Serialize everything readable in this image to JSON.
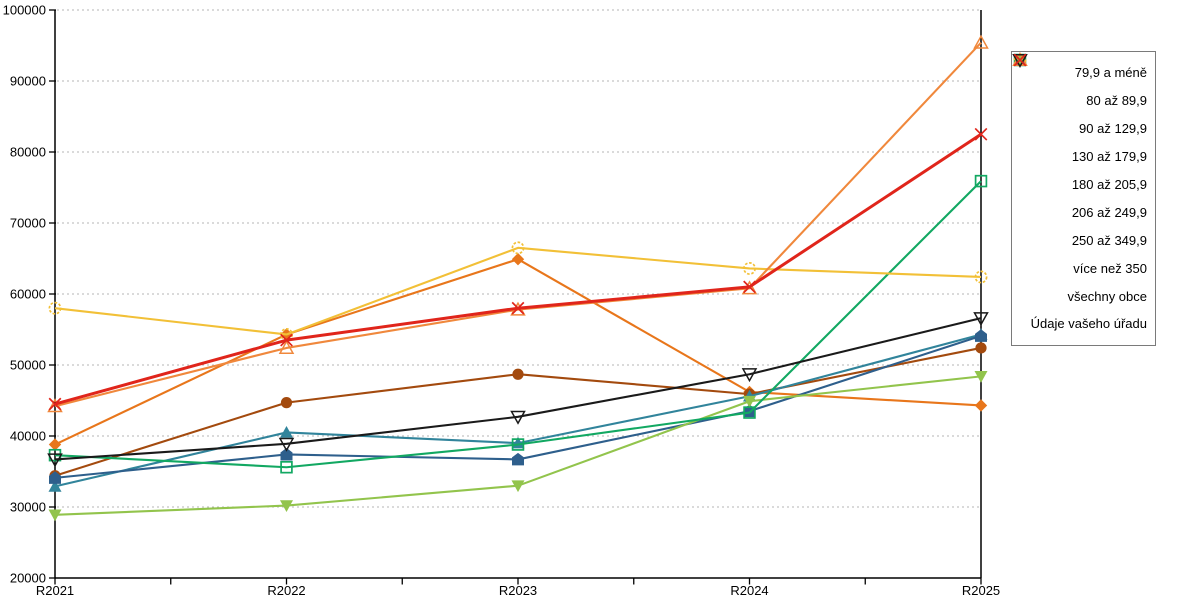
{
  "chart_data": {
    "type": "line",
    "title": "",
    "xlabel": "",
    "ylabel": "",
    "categories": [
      "R2021",
      "R2022",
      "R2023",
      "R2024",
      "R2025"
    ],
    "y_ticks": [
      20000,
      30000,
      40000,
      50000,
      60000,
      70000,
      80000,
      90000,
      100000
    ],
    "ylim": [
      20000,
      100000
    ],
    "grid": "horizontal-dotted",
    "legend_position": "right",
    "series": [
      {
        "name": "79,9 a méně",
        "color": "#e8761b",
        "marker": "diamond",
        "line_width": 2.1,
        "values": [
          38800,
          54300,
          64900,
          46200,
          44300
        ]
      },
      {
        "name": "80 až 89,9",
        "color": "#a34a0e",
        "marker": "circle",
        "line_width": 2.1,
        "values": [
          34400,
          44700,
          48700,
          45900,
          52400
        ]
      },
      {
        "name": "90 až 129,9",
        "color": "#31849b",
        "marker": "triangle-up",
        "line_width": 2.1,
        "values": [
          32900,
          40500,
          39000,
          45600,
          54300
        ]
      },
      {
        "name": "130 až 179,9",
        "color": "#2e5f8c",
        "marker": "pentagon",
        "line_width": 2.1,
        "values": [
          34100,
          37400,
          36700,
          43500,
          54100
        ]
      },
      {
        "name": "180 až 205,9",
        "color": "#92c44c",
        "marker": "triangle-down",
        "line_width": 2.1,
        "values": [
          28900,
          30200,
          33000,
          44900,
          48400
        ]
      },
      {
        "name": "206 až 249,9",
        "color": "#12a862",
        "marker": "square-open",
        "line_width": 2.1,
        "values": [
          37300,
          35600,
          38800,
          43300,
          75900
        ]
      },
      {
        "name": "250 až 349,9",
        "color": "#f2c037",
        "marker": "circle-dashed",
        "line_width": 2.1,
        "values": [
          58000,
          54300,
          66500,
          63600,
          62400
        ]
      },
      {
        "name": "více než 350",
        "color": "#f0883c",
        "marker": "triangle-up-open",
        "line_width": 2.1,
        "values": [
          44200,
          52400,
          57800,
          60800,
          95400
        ]
      },
      {
        "name": "všechny obce",
        "color": "#1a1a1a",
        "marker": "triangle-down-open",
        "line_width": 2.1,
        "values": [
          36700,
          38900,
          42700,
          48700,
          56600
        ]
      },
      {
        "name": "Údaje vašeho úřadu",
        "color": "#e0251b",
        "marker": "x-cross",
        "line_width": 3.0,
        "values": [
          44500,
          53500,
          58000,
          61000,
          82500
        ]
      }
    ]
  },
  "colors": {
    "grid": "#b5b5b5",
    "axis": "#000000",
    "legend_border": "#7a7a7a",
    "background": "#ffffff"
  }
}
